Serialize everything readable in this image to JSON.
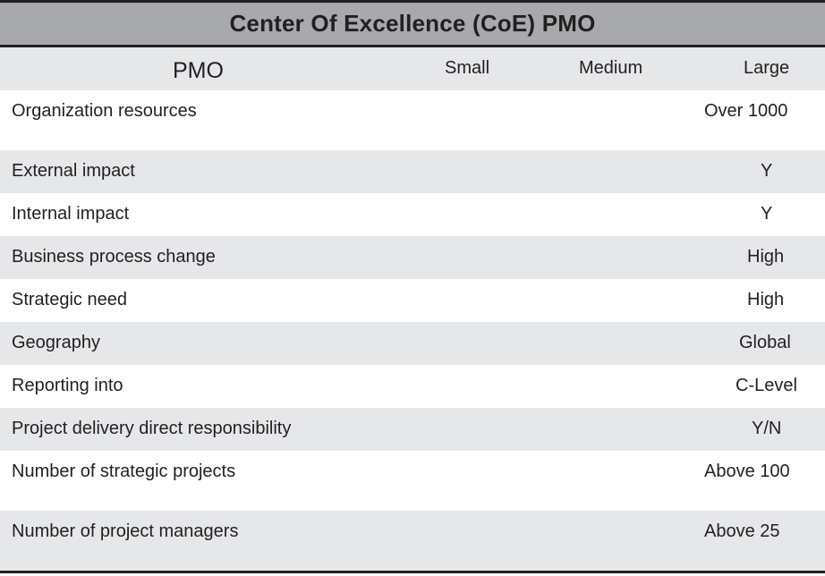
{
  "title": "Center Of Excellence (CoE) PMO",
  "header": {
    "col1": "PMO",
    "col2": "Small",
    "col3": "Medium",
    "col4": "Large"
  },
  "rows": [
    {
      "label": "Organization resources",
      "large": "Over 1000"
    },
    {
      "label": "External impact",
      "large": "Y"
    },
    {
      "label": "Internal  impact",
      "large": "Y"
    },
    {
      "label": "Business process change",
      "large": "High"
    },
    {
      "label": "Strategic need",
      "large": "High"
    },
    {
      "label": "Geography",
      "large": "Global"
    },
    {
      "label": "Reporting into",
      "large": "C-Level"
    },
    {
      "label": "Project delivery direct responsibility",
      "large": "Y/N"
    },
    {
      "label": "Number of strategic projects",
      "large": "Above 100"
    },
    {
      "label": "Number of project managers",
      "large": "Above 25"
    }
  ],
  "colors": {
    "title_bg": "#a7a9ac",
    "shade": "#e6e7e8",
    "rule": "#231f20"
  }
}
